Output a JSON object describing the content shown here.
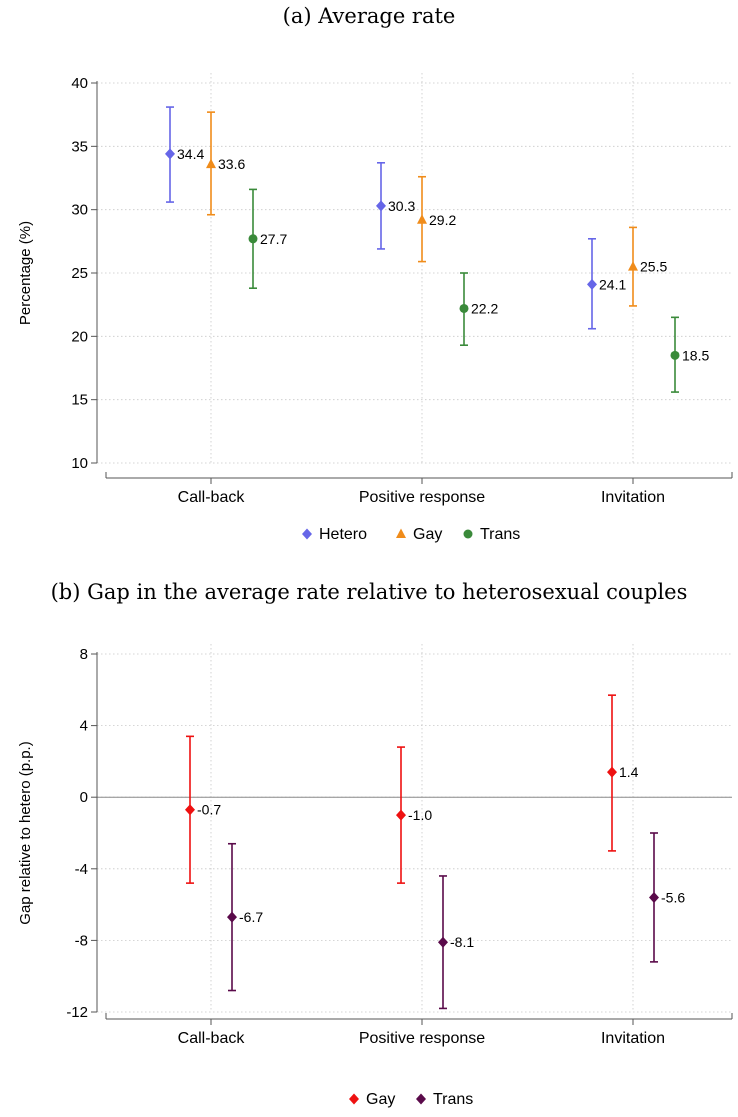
{
  "chart_data": [
    {
      "type": "scatter",
      "title": "(a) Average rate",
      "ylabel": "Percentage (%)",
      "xlabel": "",
      "ylim": [
        10,
        40
      ],
      "yticks": [
        10,
        15,
        20,
        25,
        30,
        35,
        40
      ],
      "categories": [
        "Call-back",
        "Positive response",
        "Invitation"
      ],
      "grid": true,
      "legend": "bottom",
      "series": [
        {
          "name": "Hetero",
          "marker": "diamond",
          "color": "#6666e8",
          "values": [
            34.4,
            30.3,
            24.1
          ],
          "lower": [
            30.6,
            26.9,
            20.6
          ],
          "upper": [
            38.1,
            33.7,
            27.7
          ],
          "labels": [
            "34.4",
            "30.3",
            "24.1"
          ]
        },
        {
          "name": "Gay",
          "marker": "triangle",
          "color": "#f08c1a",
          "values": [
            33.6,
            29.2,
            25.5
          ],
          "lower": [
            29.6,
            25.9,
            22.4
          ],
          "upper": [
            37.7,
            32.6,
            28.6
          ],
          "labels": [
            "33.6",
            "29.2",
            "25.5"
          ]
        },
        {
          "name": "Trans",
          "marker": "circle",
          "color": "#3a8a3a",
          "values": [
            27.7,
            22.2,
            18.5
          ],
          "lower": [
            23.8,
            19.3,
            15.6
          ],
          "upper": [
            31.6,
            25.0,
            21.5
          ],
          "labels": [
            "27.7",
            "22.2",
            "18.5"
          ]
        }
      ]
    },
    {
      "type": "scatter",
      "title": "(b) Gap in the average rate relative to heterosexual couples",
      "ylabel": "Gap relative to hetero (p.p.)",
      "xlabel": "",
      "ylim": [
        -12,
        8
      ],
      "yticks": [
        -12,
        -8,
        -4,
        0,
        4,
        8
      ],
      "reference_line": 0,
      "categories": [
        "Call-back",
        "Positive response",
        "Invitation"
      ],
      "grid": true,
      "legend": "bottom",
      "series": [
        {
          "name": "Gay",
          "marker": "diamond",
          "color": "#ee1111",
          "values": [
            -0.7,
            -1.0,
            1.4
          ],
          "lower": [
            -4.8,
            -4.8,
            -3.0
          ],
          "upper": [
            3.4,
            2.8,
            5.7
          ],
          "labels": [
            "-0.7",
            "-1.0",
            "1.4"
          ]
        },
        {
          "name": "Trans",
          "marker": "diamond",
          "color": "#5a0a4a",
          "values": [
            -6.7,
            -8.1,
            -5.6
          ],
          "lower": [
            -10.8,
            -11.8,
            -9.2
          ],
          "upper": [
            -2.6,
            -4.4,
            -2.0
          ],
          "labels": [
            "-6.7",
            "-8.1",
            "-5.6"
          ]
        }
      ]
    }
  ]
}
